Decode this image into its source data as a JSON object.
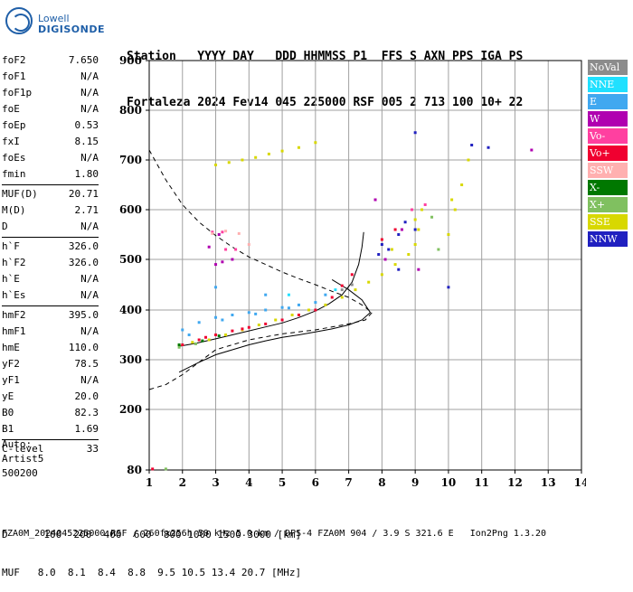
{
  "logo": {
    "line1": "Lowell",
    "line2": "DIGISONDE"
  },
  "header": {
    "line1": "Station   YYYY DAY   DDD HHMMSS P1  FFS S AXN PPS IGA PS",
    "line2": "Fortaleza 2024 Fev14 045 225000 RSF 005 2 713 100 10+ 22"
  },
  "params": {
    "group1": [
      {
        "k": "foF2",
        "v": "7.650"
      },
      {
        "k": "foF1",
        "v": "N/A"
      },
      {
        "k": "foF1p",
        "v": "N/A"
      },
      {
        "k": "foE",
        "v": "N/A"
      },
      {
        "k": "foEp",
        "v": "0.53"
      },
      {
        "k": "fxI",
        "v": "8.15"
      },
      {
        "k": "foEs",
        "v": "N/A"
      },
      {
        "k": "fmin",
        "v": "1.80"
      }
    ],
    "group2": [
      {
        "k": "MUF(D)",
        "v": "20.71"
      },
      {
        "k": "M(D)",
        "v": "2.71"
      },
      {
        "k": "D",
        "v": "N/A"
      }
    ],
    "group3": [
      {
        "k": "h`F",
        "v": "326.0"
      },
      {
        "k": "h`F2",
        "v": "326.0"
      },
      {
        "k": "h`E",
        "v": "N/A"
      },
      {
        "k": "h`Es",
        "v": "N/A"
      }
    ],
    "group4": [
      {
        "k": "hmF2",
        "v": "395.0"
      },
      {
        "k": "hmF1",
        "v": "N/A"
      },
      {
        "k": "hmE",
        "v": "110.0"
      },
      {
        "k": "yF2",
        "v": "78.5"
      },
      {
        "k": "yF1",
        "v": "N/A"
      },
      {
        "k": "yE",
        "v": "20.0"
      },
      {
        "k": "B0",
        "v": "82.3"
      },
      {
        "k": "B1",
        "v": "1.69"
      }
    ],
    "group5": [
      {
        "k": "C-level",
        "v": "33"
      }
    ]
  },
  "auto": {
    "line1": "Auto:",
    "line2": "Artist5",
    "line3": "500200"
  },
  "footer": {
    "d_line": "D      100  200  400  600  800 1000 1500 3000 [km]",
    "muf_line": "MUF   8.0  8.1  8.4  8.8  9.5 10.5 13.4 20.7 [MHz]",
    "file_line": "FZA0M_2024045225000.RSF / 260fx256h 50 kHz 5.0 km / DPS-4 FZA0M 904 / 3.9 S 321.6 E   Ion2Png 1.3.20"
  },
  "legend": [
    {
      "label": "NoVal",
      "color": "#8c8c8c"
    },
    {
      "label": "NNE",
      "color": "#20e0ff"
    },
    {
      "label": "E",
      "color": "#40a8f0"
    },
    {
      "label": "W",
      "color": "#b000b0"
    },
    {
      "label": "Vo-",
      "color": "#ff40a0"
    },
    {
      "label": "Vo+",
      "color": "#f00030"
    },
    {
      "label": "SSW",
      "color": "#ffb0b0"
    },
    {
      "label": "X-",
      "color": "#007800"
    },
    {
      "label": "X+",
      "color": "#80c060"
    },
    {
      "label": "SSE",
      "color": "#d8d800"
    },
    {
      "label": "NNW",
      "color": "#2020c0"
    }
  ],
  "chart_data": {
    "type": "scatter",
    "xlabel": "",
    "ylabel": "",
    "xlim": [
      1,
      14
    ],
    "ylim": [
      80,
      900
    ],
    "x_ticks": [
      "1",
      "2",
      "3",
      "4",
      "5",
      "6",
      "7",
      "8",
      "9",
      "10",
      "11",
      "12",
      "13",
      "14"
    ],
    "y_ticks": [
      "80",
      "200",
      "300",
      "400",
      "500",
      "600",
      "700",
      "800",
      "900"
    ],
    "grid": true,
    "series": [
      {
        "name": "SSE",
        "color": "#d8d800",
        "points": [
          [
            3.0,
            690
          ],
          [
            3.4,
            695
          ],
          [
            3.8,
            700
          ],
          [
            4.2,
            705
          ],
          [
            4.6,
            712
          ],
          [
            5.0,
            718
          ],
          [
            5.5,
            725
          ],
          [
            6.0,
            735
          ],
          [
            1.9,
            330
          ],
          [
            2.3,
            335
          ],
          [
            2.8,
            340
          ],
          [
            3.3,
            350
          ],
          [
            3.8,
            360
          ],
          [
            4.3,
            370
          ],
          [
            4.8,
            380
          ],
          [
            5.3,
            390
          ],
          [
            5.8,
            400
          ],
          [
            6.3,
            410
          ],
          [
            6.8,
            425
          ],
          [
            7.2,
            440
          ],
          [
            7.6,
            455
          ],
          [
            8.0,
            470
          ],
          [
            8.4,
            490
          ],
          [
            8.8,
            510
          ],
          [
            9.0,
            530
          ],
          [
            9.1,
            560
          ],
          [
            9.2,
            600
          ],
          [
            10.0,
            550
          ],
          [
            10.2,
            600
          ],
          [
            10.4,
            650
          ],
          [
            10.6,
            700
          ],
          [
            10.1,
            620
          ],
          [
            9.0,
            580
          ],
          [
            8.6,
            560
          ],
          [
            8.3,
            520
          ]
        ]
      },
      {
        "name": "E",
        "color": "#40a8f0",
        "points": [
          [
            2.0,
            360
          ],
          [
            2.5,
            375
          ],
          [
            3.0,
            385
          ],
          [
            3.5,
            390
          ],
          [
            4.0,
            395
          ],
          [
            4.5,
            400
          ],
          [
            5.0,
            405
          ],
          [
            5.5,
            410
          ],
          [
            6.0,
            415
          ],
          [
            2.2,
            350
          ],
          [
            3.2,
            380
          ],
          [
            4.2,
            392
          ],
          [
            5.2,
            404
          ],
          [
            3.0,
            445
          ],
          [
            4.5,
            430
          ],
          [
            6.3,
            430
          ]
        ]
      },
      {
        "name": "Vo+",
        "color": "#f00030",
        "points": [
          [
            2.0,
            330
          ],
          [
            2.5,
            340
          ],
          [
            3.0,
            350
          ],
          [
            3.5,
            358
          ],
          [
            4.0,
            365
          ],
          [
            4.5,
            372
          ],
          [
            5.0,
            380
          ],
          [
            5.5,
            390
          ],
          [
            6.0,
            400
          ],
          [
            6.5,
            425
          ],
          [
            6.8,
            448
          ],
          [
            7.1,
            470
          ],
          [
            8.0,
            540
          ],
          [
            8.4,
            560
          ],
          [
            2.7,
            345
          ],
          [
            3.8,
            362
          ]
        ]
      },
      {
        "name": "NNW",
        "color": "#2020c0",
        "points": [
          [
            8.0,
            530
          ],
          [
            8.2,
            520
          ],
          [
            8.5,
            550
          ],
          [
            8.7,
            575
          ],
          [
            9.0,
            560
          ],
          [
            9.0,
            755
          ],
          [
            10.7,
            730
          ],
          [
            11.2,
            725
          ],
          [
            8.5,
            480
          ],
          [
            7.9,
            510
          ],
          [
            10.0,
            445
          ]
        ]
      },
      {
        "name": "W",
        "color": "#b000b0",
        "points": [
          [
            3.0,
            490
          ],
          [
            3.2,
            495
          ],
          [
            3.5,
            500
          ],
          [
            3.1,
            550
          ],
          [
            2.8,
            525
          ],
          [
            8.1,
            500
          ],
          [
            8.6,
            560
          ],
          [
            9.1,
            480
          ],
          [
            12.5,
            720
          ],
          [
            7.8,
            620
          ]
        ]
      },
      {
        "name": "Vo-",
        "color": "#ff40a0",
        "points": [
          [
            3.3,
            520
          ],
          [
            3.6,
            520
          ],
          [
            2.9,
            555
          ],
          [
            3.2,
            555
          ],
          [
            8.9,
            600
          ],
          [
            9.3,
            610
          ]
        ]
      },
      {
        "name": "SSW",
        "color": "#ffb0b0",
        "points": [
          [
            2.9,
            552
          ],
          [
            3.3,
            557
          ],
          [
            3.7,
            552
          ],
          [
            4.0,
            530
          ]
        ]
      },
      {
        "name": "X+",
        "color": "#80c060",
        "points": [
          [
            1.9,
            325
          ],
          [
            2.4,
            332
          ],
          [
            9.5,
            585
          ],
          [
            9.7,
            520
          ]
        ]
      },
      {
        "name": "X-",
        "color": "#007800",
        "points": [
          [
            1.9,
            330
          ],
          [
            2.6,
            338
          ],
          [
            3.1,
            348
          ]
        ]
      },
      {
        "name": "NNE",
        "color": "#20e0ff",
        "points": [
          [
            5.2,
            430
          ],
          [
            6.6,
            440
          ]
        ]
      },
      {
        "name": "NoVal",
        "color": "#8c8c8c",
        "points": [
          [
            6.8,
            440
          ],
          [
            7.1,
            450
          ]
        ]
      }
    ],
    "curves": [
      {
        "kind": "dashed",
        "points": [
          [
            1,
            720
          ],
          [
            1.5,
            660
          ],
          [
            2,
            610
          ],
          [
            2.5,
            575
          ],
          [
            3,
            548
          ],
          [
            3.5,
            525
          ],
          [
            4,
            505
          ],
          [
            4.5,
            490
          ],
          [
            5,
            475
          ],
          [
            5.5,
            462
          ],
          [
            6,
            450
          ],
          [
            6.5,
            437
          ],
          [
            7,
            425
          ],
          [
            7.4,
            410
          ],
          [
            7.7,
            395
          ],
          [
            7.5,
            380
          ],
          [
            7,
            372
          ],
          [
            6,
            360
          ],
          [
            5,
            352
          ],
          [
            4,
            340
          ],
          [
            3,
            320
          ],
          [
            2,
            270
          ],
          [
            1.5,
            250
          ],
          [
            1,
            240
          ]
        ]
      },
      {
        "kind": "solid-profile",
        "points": [
          [
            1.9,
            275
          ],
          [
            2.5,
            295
          ],
          [
            3,
            310
          ],
          [
            3.5,
            320
          ],
          [
            4,
            330
          ],
          [
            4.5,
            338
          ],
          [
            5,
            345
          ],
          [
            5.5,
            350
          ],
          [
            6,
            356
          ],
          [
            6.5,
            362
          ],
          [
            7,
            370
          ],
          [
            7.4,
            380
          ],
          [
            7.65,
            395
          ],
          [
            7.4,
            420
          ],
          [
            7.0,
            440
          ],
          [
            6.5,
            460
          ]
        ]
      },
      {
        "kind": "solid-trace",
        "points": [
          [
            1.9,
            327
          ],
          [
            2.4,
            333
          ],
          [
            3,
            342
          ],
          [
            3.5,
            350
          ],
          [
            4,
            358
          ],
          [
            4.5,
            366
          ],
          [
            5,
            374
          ],
          [
            5.5,
            385
          ],
          [
            6,
            398
          ],
          [
            6.4,
            412
          ],
          [
            6.8,
            430
          ],
          [
            7.1,
            455
          ],
          [
            7.3,
            490
          ],
          [
            7.4,
            525
          ],
          [
            7.45,
            555
          ]
        ]
      }
    ]
  }
}
